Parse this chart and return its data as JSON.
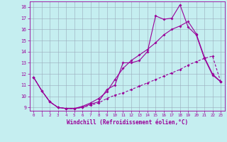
{
  "xlabel": "Windchill (Refroidissement éolien,°C)",
  "xlim": [
    -0.5,
    23.5
  ],
  "ylim": [
    8.7,
    18.5
  ],
  "yticks": [
    9,
    10,
    11,
    12,
    13,
    14,
    15,
    16,
    17,
    18
  ],
  "xticks": [
    0,
    1,
    2,
    3,
    4,
    5,
    6,
    7,
    8,
    9,
    10,
    11,
    12,
    13,
    14,
    15,
    16,
    17,
    18,
    19,
    20,
    21,
    22,
    23
  ],
  "bg_color": "#c5eef0",
  "line_color": "#990099",
  "grid_color": "#99aabb",
  "line1_x": [
    0,
    1,
    2,
    3,
    4,
    5,
    6,
    7,
    8,
    9,
    10,
    11,
    12,
    13,
    14,
    15,
    16,
    17,
    18,
    19,
    20,
    21,
    22,
    23
  ],
  "line1_y": [
    11.7,
    10.5,
    9.5,
    9.0,
    8.9,
    8.9,
    9.0,
    9.3,
    9.5,
    10.6,
    11.0,
    13.0,
    13.0,
    13.2,
    14.0,
    17.2,
    16.9,
    17.0,
    18.2,
    16.2,
    15.5,
    13.4,
    11.9,
    11.3
  ],
  "line2_x": [
    0,
    1,
    2,
    3,
    4,
    5,
    6,
    7,
    8,
    9,
    10,
    11,
    12,
    13,
    14,
    15,
    16,
    17,
    18,
    19,
    20,
    21,
    22,
    23
  ],
  "line2_y": [
    11.7,
    10.5,
    9.5,
    9.0,
    8.9,
    8.9,
    9.1,
    9.4,
    9.8,
    10.4,
    11.5,
    12.5,
    13.2,
    13.7,
    14.2,
    14.8,
    15.5,
    16.0,
    16.3,
    16.7,
    15.6,
    13.5,
    12.0,
    11.3
  ],
  "line3_x": [
    0,
    1,
    2,
    3,
    4,
    5,
    6,
    7,
    8,
    9,
    10,
    11,
    12,
    13,
    14,
    15,
    16,
    17,
    18,
    19,
    20,
    21,
    22,
    23
  ],
  "line3_y": [
    11.7,
    10.5,
    9.5,
    9.0,
    8.9,
    8.9,
    9.0,
    9.2,
    9.4,
    9.8,
    10.1,
    10.3,
    10.6,
    10.9,
    11.2,
    11.5,
    11.8,
    12.1,
    12.4,
    12.8,
    13.1,
    13.4,
    13.6,
    11.3
  ]
}
